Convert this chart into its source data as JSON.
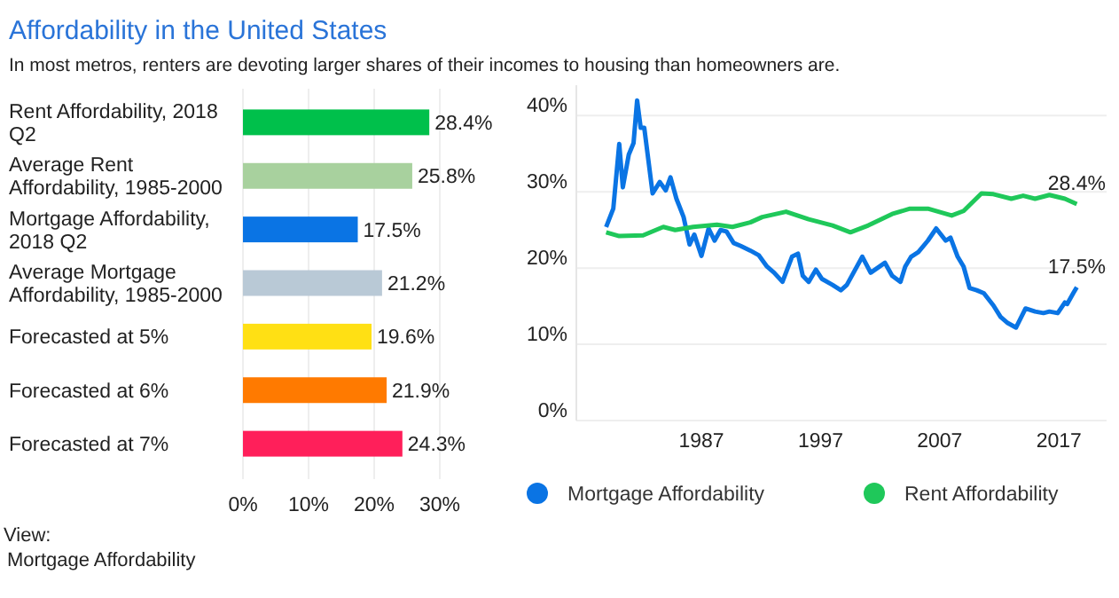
{
  "chart_data": [
    {
      "type": "bar",
      "orientation": "horizontal",
      "title": "Affordability in the United States",
      "subtitle": "In most metros, renters are devoting larger shares of their incomes to housing than homeowners are.",
      "categories": [
        "Rent Affordability, 2018 Q2",
        "Average Rent Affordability, 1985-2000",
        "Mortgage Affordability, 2018 Q2",
        "Average Mortgage Affordability, 1985-2000",
        "Forecasted at 5%",
        "Forecasted at 6%",
        "Forecasted at 7%"
      ],
      "values": [
        28.4,
        25.8,
        17.5,
        21.2,
        19.6,
        21.9,
        24.3
      ],
      "colors": [
        "#00c04b",
        "#a8d19e",
        "#0a74e4",
        "#b9c9d6",
        "#ffe014",
        "#ff7a00",
        "#ff1f5a"
      ],
      "value_labels": [
        "28.4%",
        "25.8%",
        "17.5%",
        "21.2%",
        "19.6%",
        "21.9%",
        "24.3%"
      ],
      "xlim": [
        0,
        30
      ],
      "xticks": [
        {
          "value": 0,
          "label": "0%"
        },
        {
          "value": 10,
          "label": "10%"
        },
        {
          "value": 20,
          "label": "20%"
        },
        {
          "value": 30,
          "label": "30%"
        }
      ],
      "grid": "x",
      "annotations": [
        "View:",
        "Mortgage Affordability"
      ]
    },
    {
      "type": "line",
      "series": [
        {
          "name": "Mortgage Affordability",
          "color": "#0a74e4",
          "x": [
            1979.0,
            1979.6,
            1980.1,
            1980.4,
            1980.9,
            1981.3,
            1981.6,
            1981.9,
            1982.2,
            1982.9,
            1983.5,
            1984.0,
            1984.4,
            1984.9,
            1985.5,
            1986.0,
            1986.4,
            1987.0,
            1987.6,
            1988.1,
            1988.6,
            1989.1,
            1989.7,
            1990.3,
            1991.1,
            1991.8,
            1992.5,
            1993.1,
            1993.8,
            1994.6,
            1995.1,
            1995.5,
            1996.0,
            1996.6,
            1997.1,
            1998.0,
            1998.7,
            1999.2,
            2000.5,
            2001.2,
            2002.4,
            2003.0,
            2003.7,
            2004.1,
            2004.6,
            2005.2,
            2006.0,
            2006.7,
            2007.5,
            2007.9,
            2008.5,
            2009.0,
            2009.5,
            2010.1,
            2010.7,
            2011.5,
            2012.1,
            2012.7,
            2013.4,
            2014.2,
            2015.0,
            2015.7,
            2016.2,
            2016.9,
            2017.5,
            2017.7,
            2018.2,
            2018.5
          ],
          "values": [
            25.4,
            27.8,
            36.3,
            30.6,
            34.9,
            36.4,
            42.0,
            38.4,
            38.4,
            29.8,
            31.3,
            30.2,
            31.9,
            29.1,
            26.7,
            23.1,
            24.4,
            21.6,
            25.2,
            23.6,
            25.0,
            24.8,
            23.3,
            22.9,
            22.3,
            21.7,
            20.2,
            19.4,
            18.2,
            21.5,
            21.9,
            19.0,
            18.2,
            19.8,
            18.6,
            17.8,
            17.1,
            17.8,
            21.5,
            19.4,
            20.7,
            19.0,
            18.2,
            20.2,
            21.5,
            22.1,
            23.6,
            25.2,
            23.6,
            24.0,
            21.5,
            20.2,
            17.4,
            17.1,
            16.7,
            15.1,
            13.6,
            12.8,
            12.2,
            14.7,
            14.3,
            14.1,
            14.3,
            14.1,
            15.5,
            15.3,
            16.7,
            17.5
          ]
        },
        {
          "name": "Rent Affordability",
          "color": "#1fc85a",
          "x": [
            1979.0,
            1980.1,
            1982.1,
            1983.8,
            1984.8,
            1986.3,
            1988.3,
            1989.6,
            1991.1,
            1992.1,
            1994.1,
            1996.0,
            1998.0,
            1999.5,
            2001.0,
            2003.0,
            2004.5,
            2006.0,
            2008.0,
            2009.0,
            2010.5,
            2011.5,
            2013.0,
            2014.0,
            2015.0,
            2016.2,
            2017.5,
            2018.5
          ],
          "values": [
            24.7,
            24.2,
            24.3,
            25.4,
            25.0,
            25.4,
            25.7,
            25.4,
            26.0,
            26.7,
            27.4,
            26.4,
            25.6,
            24.7,
            25.6,
            27.1,
            27.8,
            27.8,
            26.9,
            27.5,
            29.8,
            29.7,
            29.1,
            29.5,
            29.1,
            29.6,
            29.1,
            28.4
          ]
        }
      ],
      "xlim": [
        1976.5,
        2021
      ],
      "xticks": [
        1987,
        1997,
        2007,
        2017
      ],
      "ylim": [
        0,
        44
      ],
      "yticks": [
        {
          "value": 0,
          "label": "0%"
        },
        {
          "value": 10,
          "label": "10%"
        },
        {
          "value": 20,
          "label": "20%"
        },
        {
          "value": 30,
          "label": "30%"
        },
        {
          "value": 40,
          "label": "40%"
        }
      ],
      "grid": "y",
      "legend": "bottom",
      "annotations": [
        {
          "text": "28.4%",
          "x": 2018.5,
          "y": 28.4
        },
        {
          "text": "17.5%",
          "x": 2018.5,
          "y": 17.5
        }
      ]
    }
  ]
}
